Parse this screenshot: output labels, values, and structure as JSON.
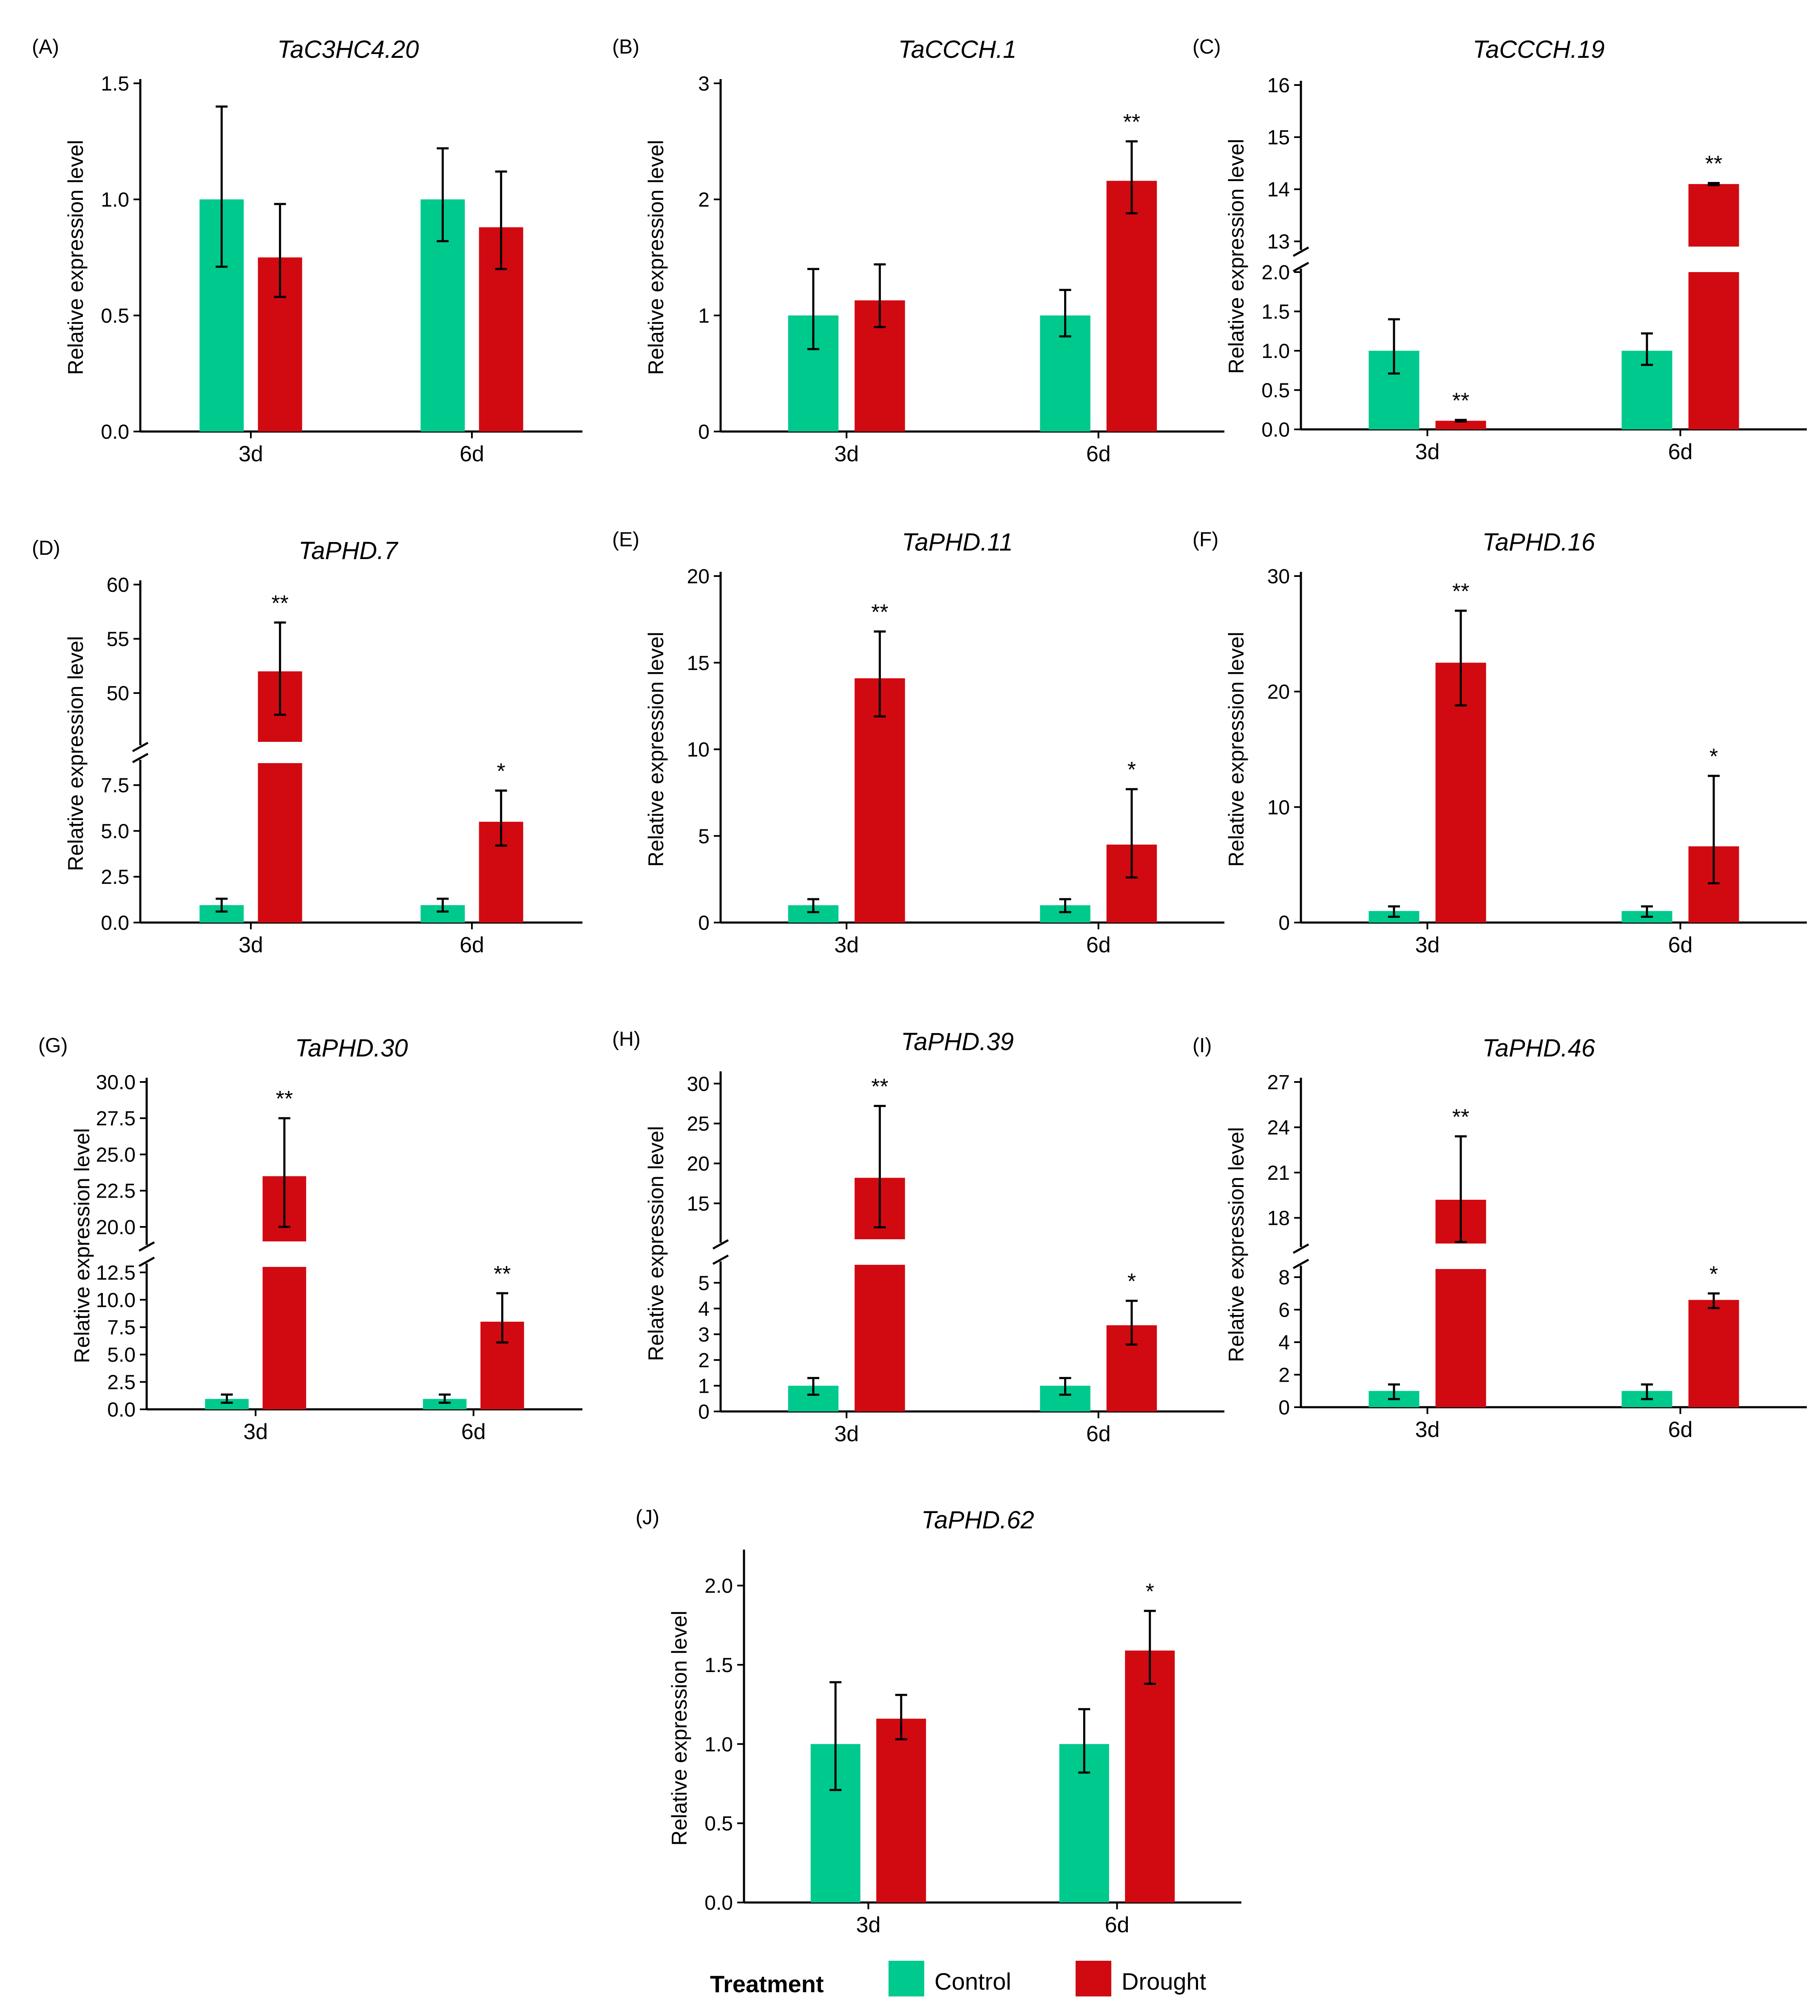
{
  "colors": {
    "control": "#00C98E",
    "drought": "#D10A11",
    "axis": "#000000"
  },
  "legend": {
    "title": "Treatment",
    "items": [
      {
        "label": "Control",
        "color": "#00C98E"
      },
      {
        "label": "Drought",
        "color": "#D10A11"
      }
    ]
  },
  "chart_data": [
    {
      "id": "A",
      "panel_label": "(A)",
      "title": "TaC3HC4.20",
      "type": "bar",
      "ylabel": "Relative expression level",
      "categories": [
        "3d",
        "6d"
      ],
      "ylim": [
        0,
        1.5
      ],
      "yticks": [
        "0.0",
        "0.5",
        "1.0",
        "1.5"
      ],
      "series": [
        {
          "name": "Control",
          "values": [
            1.0,
            1.0
          ],
          "err_low": [
            0.71,
            0.82
          ],
          "err_high": [
            1.4,
            1.22
          ],
          "sig": [
            "",
            ""
          ]
        },
        {
          "name": "Drought",
          "values": [
            0.75,
            0.88
          ],
          "err_low": [
            0.58,
            0.7
          ],
          "err_high": [
            0.98,
            1.12
          ],
          "sig": [
            "",
            ""
          ]
        }
      ]
    },
    {
      "id": "B",
      "panel_label": "(B)",
      "title": "TaCCCH.1",
      "type": "bar",
      "ylabel": "Relative expression level",
      "categories": [
        "3d",
        "6d"
      ],
      "ylim": [
        0,
        3
      ],
      "yticks": [
        "0",
        "1",
        "2",
        "3"
      ],
      "series": [
        {
          "name": "Control",
          "values": [
            1.0,
            1.0
          ],
          "err_low": [
            0.71,
            0.82
          ],
          "err_high": [
            1.4,
            1.22
          ],
          "sig": [
            "",
            ""
          ]
        },
        {
          "name": "Drought",
          "values": [
            1.13,
            2.16
          ],
          "err_low": [
            0.9,
            1.88
          ],
          "err_high": [
            1.44,
            2.5
          ],
          "sig": [
            "",
            "**"
          ]
        }
      ]
    },
    {
      "id": "C",
      "panel_label": "(C)",
      "title": "TaCCCH.19",
      "type": "bar",
      "ylabel": "Relative expression level",
      "categories": [
        "3d",
        "6d"
      ],
      "axis_break": {
        "lower": [
          0,
          2.0
        ],
        "upper": [
          12.9,
          16
        ]
      },
      "yticks_lower": [
        "0.0",
        "0.5",
        "1.0",
        "1.5",
        "2.0"
      ],
      "yticks_upper": [
        "13",
        "14",
        "15",
        "16"
      ],
      "series": [
        {
          "name": "Control",
          "values": [
            1.0,
            1.0
          ],
          "err_low": [
            0.71,
            0.82
          ],
          "err_high": [
            1.4,
            1.22
          ],
          "sig": [
            "",
            ""
          ]
        },
        {
          "name": "Drought",
          "values": [
            0.11,
            14.1
          ],
          "err_low": [
            0.1,
            14.08
          ],
          "err_high": [
            0.12,
            14.12
          ],
          "sig": [
            "**",
            "**"
          ]
        }
      ]
    },
    {
      "id": "D",
      "panel_label": "(D)",
      "title": "TaPHD.7",
      "type": "bar",
      "ylabel": "Relative expression level",
      "categories": [
        "3d",
        "6d"
      ],
      "axis_break": {
        "lower": [
          0,
          8.7
        ],
        "upper": [
          45.5,
          60
        ]
      },
      "yticks_lower": [
        "0.0",
        "2.5",
        "5.0",
        "7.5"
      ],
      "yticks_upper": [
        "50",
        "55",
        "60"
      ],
      "series": [
        {
          "name": "Control",
          "values": [
            0.95,
            0.95
          ],
          "err_low": [
            0.6,
            0.6
          ],
          "err_high": [
            1.3,
            1.3
          ],
          "sig": [
            "",
            ""
          ]
        },
        {
          "name": "Drought",
          "values": [
            52,
            5.5
          ],
          "err_low": [
            48,
            4.2
          ],
          "err_high": [
            56.5,
            7.2
          ],
          "sig": [
            "**",
            "*"
          ]
        }
      ]
    },
    {
      "id": "E",
      "panel_label": "(E)",
      "title": "TaPHD.11",
      "type": "bar",
      "ylabel": "Relative expression level",
      "categories": [
        "3d",
        "6d"
      ],
      "ylim": [
        0,
        20
      ],
      "yticks": [
        "0",
        "5",
        "10",
        "15",
        "20"
      ],
      "series": [
        {
          "name": "Control",
          "values": [
            1.0,
            1.0
          ],
          "err_low": [
            0.6,
            0.6
          ],
          "err_high": [
            1.35,
            1.35
          ],
          "sig": [
            "",
            ""
          ]
        },
        {
          "name": "Drought",
          "values": [
            14.1,
            4.5
          ],
          "err_low": [
            11.9,
            2.6
          ],
          "err_high": [
            16.8,
            7.7
          ],
          "sig": [
            "**",
            "*"
          ]
        }
      ]
    },
    {
      "id": "F",
      "panel_label": "(F)",
      "title": "TaPHD.16",
      "type": "bar",
      "ylabel": "Relative expression level",
      "categories": [
        "3d",
        "6d"
      ],
      "ylim": [
        0,
        30
      ],
      "yticks": [
        "0",
        "10",
        "20",
        "30"
      ],
      "series": [
        {
          "name": "Control",
          "values": [
            1.0,
            1.0
          ],
          "err_low": [
            0.5,
            0.5
          ],
          "err_high": [
            1.4,
            1.4
          ],
          "sig": [
            "",
            ""
          ]
        },
        {
          "name": "Drought",
          "values": [
            22.5,
            6.6
          ],
          "err_low": [
            18.8,
            3.4
          ],
          "err_high": [
            27.0,
            12.7
          ],
          "sig": [
            "**",
            "*"
          ]
        }
      ]
    },
    {
      "id": "G",
      "panel_label": "(G)",
      "title": "TaPHD.30",
      "type": "bar",
      "ylabel": "Relative expression level",
      "categories": [
        "3d",
        "6d"
      ],
      "axis_break": {
        "lower": [
          0,
          13.0
        ],
        "upper": [
          19.0,
          30.0
        ]
      },
      "yticks_lower": [
        "0.0",
        "2.5",
        "5.0",
        "7.5",
        "10.0",
        "12.5"
      ],
      "yticks_upper": [
        "20.0",
        "22.5",
        "25.0",
        "27.5",
        "30.0"
      ],
      "series": [
        {
          "name": "Control",
          "values": [
            0.95,
            0.95
          ],
          "err_low": [
            0.6,
            0.6
          ],
          "err_high": [
            1.35,
            1.35
          ],
          "sig": [
            "",
            ""
          ]
        },
        {
          "name": "Drought",
          "values": [
            23.5,
            8.0
          ],
          "err_low": [
            20.0,
            6.1
          ],
          "err_high": [
            27.5,
            10.6
          ],
          "sig": [
            "**",
            "**"
          ]
        }
      ]
    },
    {
      "id": "H",
      "panel_label": "(H)",
      "title": "TaPHD.39",
      "type": "bar",
      "ylabel": "Relative expression level",
      "categories": [
        "3d",
        "6d"
      ],
      "axis_break": {
        "lower": [
          0,
          5.7
        ],
        "upper": [
          10.5,
          31
        ]
      },
      "yticks_lower": [
        "0",
        "1",
        "2",
        "3",
        "4",
        "5"
      ],
      "yticks_upper": [
        "15",
        "20",
        "25",
        "30"
      ],
      "series": [
        {
          "name": "Control",
          "values": [
            1.0,
            1.0
          ],
          "err_low": [
            0.65,
            0.65
          ],
          "err_high": [
            1.3,
            1.3
          ],
          "sig": [
            "",
            ""
          ]
        },
        {
          "name": "Drought",
          "values": [
            18.2,
            3.35
          ],
          "err_low": [
            12.0,
            2.6
          ],
          "err_high": [
            27.2,
            4.3
          ],
          "sig": [
            "**",
            "*"
          ]
        }
      ]
    },
    {
      "id": "I",
      "panel_label": "(I)",
      "title": "TaPHD.46",
      "type": "bar",
      "ylabel": "Relative expression level",
      "categories": [
        "3d",
        "6d"
      ],
      "axis_break": {
        "lower": [
          0,
          8.5
        ],
        "upper": [
          16.3,
          27
        ]
      },
      "yticks_lower": [
        "0",
        "2",
        "4",
        "6",
        "8"
      ],
      "yticks_upper": [
        "18",
        "21",
        "24",
        "27"
      ],
      "series": [
        {
          "name": "Control",
          "values": [
            1.0,
            1.0
          ],
          "err_low": [
            0.5,
            0.5
          ],
          "err_high": [
            1.4,
            1.4
          ],
          "sig": [
            "",
            ""
          ]
        },
        {
          "name": "Drought",
          "values": [
            19.2,
            6.6
          ],
          "err_low": [
            16.4,
            6.1
          ],
          "err_high": [
            23.4,
            7.0
          ],
          "sig": [
            "**",
            "*"
          ]
        }
      ]
    },
    {
      "id": "J",
      "panel_label": "(J)",
      "title": "TaPHD.62",
      "type": "bar",
      "ylabel": "Relative expression level",
      "categories": [
        "3d",
        "6d"
      ],
      "ylim": [
        0,
        2.2
      ],
      "yticks": [
        "0.0",
        "0.5",
        "1.0",
        "1.5",
        "2.0"
      ],
      "series": [
        {
          "name": "Control",
          "values": [
            1.0,
            1.0
          ],
          "err_low": [
            0.71,
            0.82
          ],
          "err_high": [
            1.39,
            1.22
          ],
          "sig": [
            "",
            ""
          ]
        },
        {
          "name": "Drought",
          "values": [
            1.16,
            1.59
          ],
          "err_low": [
            1.03,
            1.38
          ],
          "err_high": [
            1.31,
            1.84
          ],
          "sig": [
            "",
            "*"
          ]
        }
      ]
    }
  ]
}
